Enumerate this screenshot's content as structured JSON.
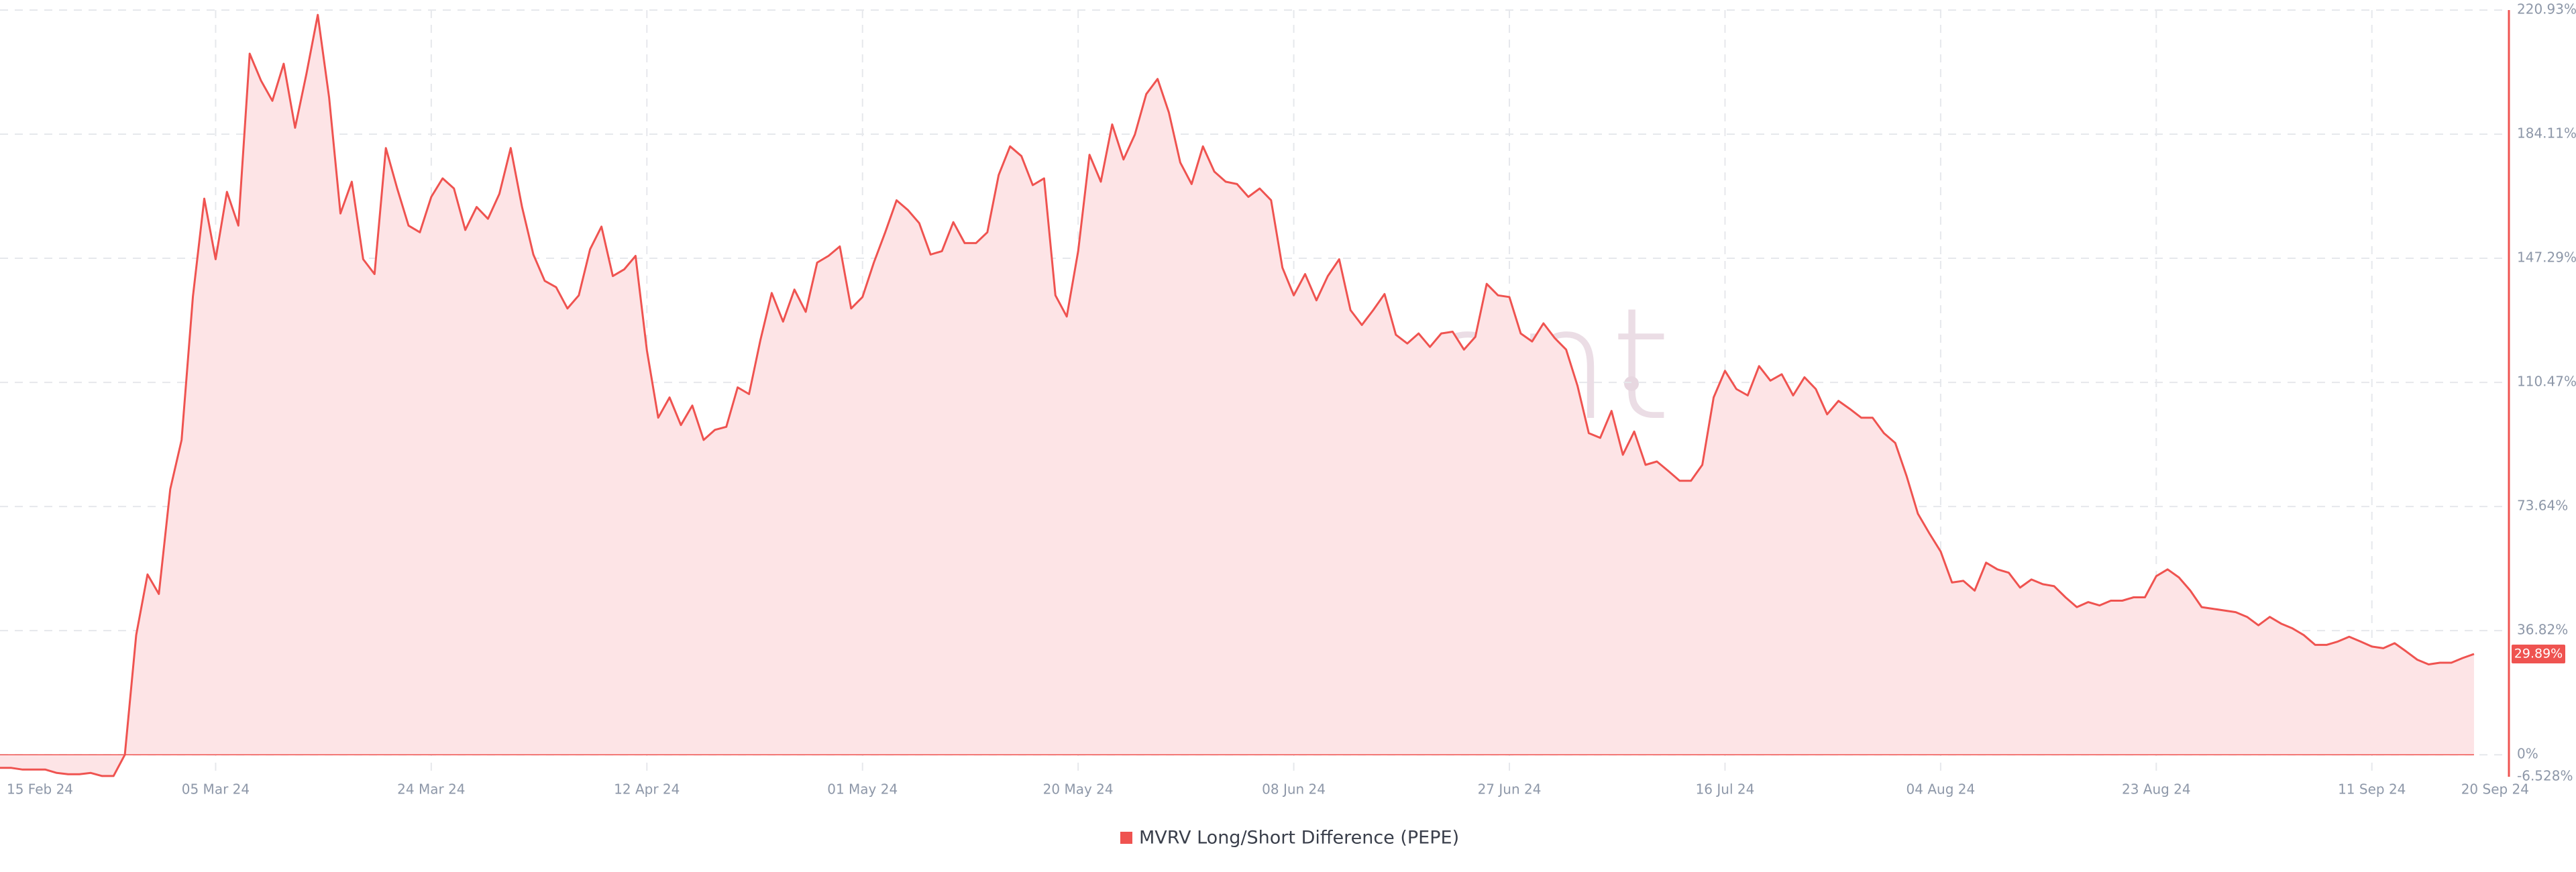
{
  "chart_data": {
    "type": "area",
    "watermark": "santiment",
    "x": [
      "2024-02-15",
      "2024-02-16",
      "2024-02-17",
      "2024-02-18",
      "2024-02-19",
      "2024-02-20",
      "2024-02-21",
      "2024-02-22",
      "2024-02-23",
      "2024-02-24",
      "2024-02-25",
      "2024-02-26",
      "2024-02-27",
      "2024-02-28",
      "2024-02-29",
      "2024-03-01",
      "2024-03-02",
      "2024-03-03",
      "2024-03-04",
      "2024-03-05",
      "2024-03-06",
      "2024-03-07",
      "2024-03-08",
      "2024-03-09",
      "2024-03-10",
      "2024-03-11",
      "2024-03-12",
      "2024-03-13",
      "2024-03-14",
      "2024-03-15",
      "2024-03-16",
      "2024-03-17",
      "2024-03-18",
      "2024-03-19",
      "2024-03-20",
      "2024-03-21",
      "2024-03-22",
      "2024-03-23",
      "2024-03-24",
      "2024-03-25",
      "2024-03-26",
      "2024-03-27",
      "2024-03-28",
      "2024-03-29",
      "2024-03-30",
      "2024-03-31",
      "2024-04-01",
      "2024-04-02",
      "2024-04-03",
      "2024-04-04",
      "2024-04-05",
      "2024-04-06",
      "2024-04-07",
      "2024-04-08",
      "2024-04-09",
      "2024-04-10",
      "2024-04-11",
      "2024-04-12",
      "2024-04-13",
      "2024-04-14",
      "2024-04-15",
      "2024-04-16",
      "2024-04-17",
      "2024-04-18",
      "2024-04-19",
      "2024-04-20",
      "2024-04-21",
      "2024-04-22",
      "2024-04-23",
      "2024-04-24",
      "2024-04-25",
      "2024-04-26",
      "2024-04-27",
      "2024-04-28",
      "2024-04-29",
      "2024-04-30",
      "2024-05-01",
      "2024-05-02",
      "2024-05-03",
      "2024-05-04",
      "2024-05-05",
      "2024-05-06",
      "2024-05-07",
      "2024-05-08",
      "2024-05-09",
      "2024-05-10",
      "2024-05-11",
      "2024-05-12",
      "2024-05-13",
      "2024-05-14",
      "2024-05-15",
      "2024-05-16",
      "2024-05-17",
      "2024-05-18",
      "2024-05-19",
      "2024-05-20",
      "2024-05-21",
      "2024-05-22",
      "2024-05-23",
      "2024-05-24",
      "2024-05-25",
      "2024-05-26",
      "2024-05-27",
      "2024-05-28",
      "2024-05-29",
      "2024-05-30",
      "2024-05-31",
      "2024-06-01",
      "2024-06-02",
      "2024-06-03",
      "2024-06-04",
      "2024-06-05",
      "2024-06-06",
      "2024-06-07",
      "2024-06-08",
      "2024-06-09",
      "2024-06-10",
      "2024-06-11",
      "2024-06-12",
      "2024-06-13",
      "2024-06-14",
      "2024-06-15",
      "2024-06-16",
      "2024-06-17",
      "2024-06-18",
      "2024-06-19",
      "2024-06-20",
      "2024-06-21",
      "2024-06-22",
      "2024-06-23",
      "2024-06-24",
      "2024-06-25",
      "2024-06-26",
      "2024-06-27",
      "2024-06-28",
      "2024-06-29",
      "2024-06-30",
      "2024-07-01",
      "2024-07-02",
      "2024-07-03",
      "2024-07-04",
      "2024-07-05",
      "2024-07-06",
      "2024-07-07",
      "2024-07-08",
      "2024-07-09",
      "2024-07-10",
      "2024-07-11",
      "2024-07-12",
      "2024-07-13",
      "2024-07-14",
      "2024-07-15",
      "2024-07-16",
      "2024-07-17",
      "2024-07-18",
      "2024-07-19",
      "2024-07-20",
      "2024-07-21",
      "2024-07-22",
      "2024-07-23",
      "2024-07-24",
      "2024-07-25",
      "2024-07-26",
      "2024-07-27",
      "2024-07-28",
      "2024-07-29",
      "2024-07-30",
      "2024-07-31",
      "2024-08-01",
      "2024-08-02",
      "2024-08-03",
      "2024-08-04",
      "2024-08-05",
      "2024-08-06",
      "2024-08-07",
      "2024-08-08",
      "2024-08-09",
      "2024-08-10",
      "2024-08-11",
      "2024-08-12",
      "2024-08-13",
      "2024-08-14",
      "2024-08-15",
      "2024-08-16",
      "2024-08-17",
      "2024-08-18",
      "2024-08-19",
      "2024-08-20",
      "2024-08-21",
      "2024-08-22",
      "2024-08-23",
      "2024-08-24",
      "2024-08-25",
      "2024-08-26",
      "2024-08-27",
      "2024-08-28",
      "2024-08-29",
      "2024-08-30",
      "2024-08-31",
      "2024-09-01",
      "2024-09-02",
      "2024-09-03",
      "2024-09-04",
      "2024-09-05",
      "2024-09-06",
      "2024-09-07",
      "2024-09-08",
      "2024-09-09",
      "2024-09-10",
      "2024-09-11",
      "2024-09-12",
      "2024-09-13",
      "2024-09-14",
      "2024-09-15",
      "2024-09-16",
      "2024-09-17",
      "2024-09-18",
      "2024-09-19",
      "2024-09-20"
    ],
    "series": [
      {
        "name": "MVRV Long/Short Difference (PEPE)",
        "color": "#ef5350",
        "fill": "#fde4e6",
        "values": [
          -3.9,
          -3.9,
          -4.4,
          -4.4,
          -4.4,
          -5.4,
          -5.8,
          -5.8,
          -5.4,
          -6.3,
          -6.3,
          0,
          35.5,
          53.5,
          47.7,
          78.8,
          93.4,
          136,
          165,
          147,
          167,
          157,
          208,
          200,
          194,
          205,
          186,
          202,
          219.5,
          195,
          160.6,
          170,
          147,
          142.6,
          180,
          168,
          157,
          155,
          165.5,
          171,
          168,
          155.7,
          162.5,
          159,
          166.4,
          180,
          162.5,
          148.4,
          140.6,
          138.7,
          132.4,
          136.3,
          150,
          156.7,
          142,
          144,
          148,
          120,
          100,
          106,
          97.8,
          103.6,
          93.4,
          96.4,
          97.3,
          109,
          107,
          123,
          137,
          128.5,
          138,
          131.4,
          146,
          148,
          150.8,
          132.4,
          135.8,
          146,
          155,
          164.5,
          161.6,
          157.7,
          148.4,
          149.4,
          158,
          151.8,
          151.8,
          155,
          172,
          180.5,
          177.6,
          169,
          171,
          136.3,
          130,
          149.4,
          178,
          170,
          187,
          176.6,
          184,
          196,
          200.5,
          190.5,
          175.7,
          169.3,
          180.5,
          173,
          170,
          169.3,
          165.5,
          168,
          164.5,
          144.5,
          136.3,
          142.6,
          134.8,
          142,
          147,
          131.9,
          127.5,
          131.9,
          136.7,
          124.6,
          122,
          125,
          121,
          125,
          125.5,
          120.2,
          124,
          139.7,
          136.3,
          135.8,
          125,
          122.6,
          128,
          123.6,
          120.2,
          109.5,
          95.4,
          94,
          102,
          89,
          95.9,
          86,
          87,
          84.2,
          81.3,
          81.3,
          86,
          106,
          113.9,
          108.5,
          106.6,
          115.3,
          111,
          112.9,
          106.6,
          112,
          108.5,
          101,
          105,
          102.6,
          100,
          100,
          95.4,
          92.5,
          82.7,
          71.5,
          65.7,
          60.3,
          51.1,
          51.6,
          48.7,
          57,
          55,
          54,
          49.6,
          52,
          50.6,
          50,
          46.7,
          43.8,
          45.3,
          44.3,
          45.7,
          45.7,
          46.7,
          46.7,
          53,
          55,
          52.6,
          48.7,
          43.8,
          43.3,
          42.8,
          42.3,
          40.9,
          38.4,
          40.9,
          38.9,
          37.5,
          35.5,
          32.6,
          32.6,
          33.6,
          35,
          33.6,
          32.1,
          31.6,
          33.1,
          30.7,
          28.2,
          26.8,
          27.3,
          27.3,
          28.7,
          29.89
        ],
        "last_value_label": "29.89%"
      }
    ],
    "xlim": [
      "2024-02-15",
      "2024-09-20"
    ],
    "xticks": [
      {
        "value": "2024-02-15",
        "label": "15 Feb 24"
      },
      {
        "value": "2024-03-05",
        "label": "05 Mar 24"
      },
      {
        "value": "2024-03-24",
        "label": "24 Mar 24"
      },
      {
        "value": "2024-04-12",
        "label": "12 Apr 24"
      },
      {
        "value": "2024-05-01",
        "label": "01 May 24"
      },
      {
        "value": "2024-05-20",
        "label": "20 May 24"
      },
      {
        "value": "2024-06-08",
        "label": "08 Jun 24"
      },
      {
        "value": "2024-06-27",
        "label": "27 Jun 24"
      },
      {
        "value": "2024-07-16",
        "label": "16 Jul 24"
      },
      {
        "value": "2024-08-04",
        "label": "04 Aug 24"
      },
      {
        "value": "2024-08-23",
        "label": "23 Aug 24"
      },
      {
        "value": "2024-09-11",
        "label": "11 Sep 24"
      },
      {
        "value": "2024-09-20",
        "label": "20 Sep 24"
      }
    ],
    "ylim": [
      -6.528,
      220.93
    ],
    "yticks": [
      {
        "value": -6.528,
        "label": "-6.528%"
      },
      {
        "value": 0,
        "label": "0%"
      },
      {
        "value": 36.82,
        "label": "36.82%"
      },
      {
        "value": 73.64,
        "label": "73.64%"
      },
      {
        "value": 110.47,
        "label": "110.47%"
      },
      {
        "value": 147.29,
        "label": "147.29%"
      },
      {
        "value": 184.11,
        "label": "184.11%"
      },
      {
        "value": 220.93,
        "label": "220.93%"
      }
    ],
    "grid": true,
    "legend": "bottom"
  }
}
